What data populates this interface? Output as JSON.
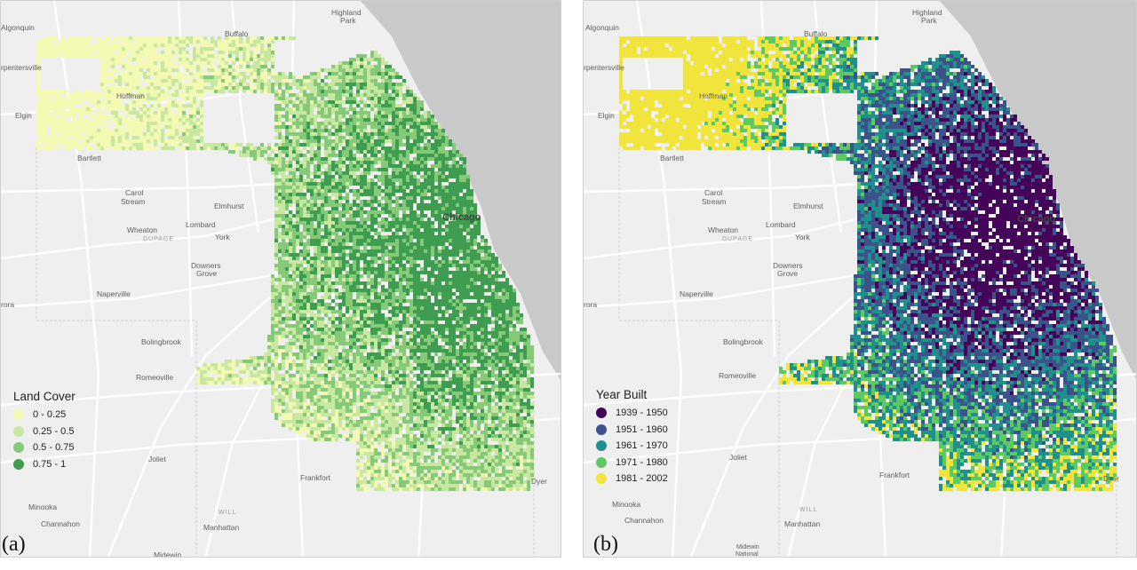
{
  "panels": [
    {
      "id": "a",
      "panel_label": "(a)",
      "legend": {
        "title": "Land Cover",
        "items": [
          {
            "label": "0 - 0.25",
            "color": "#f4f9b4"
          },
          {
            "label": "0.25 - 0.5",
            "color": "#c8e8a2"
          },
          {
            "label": "0.5 - 0.75",
            "color": "#86c978"
          },
          {
            "label": "0.75 - 1",
            "color": "#3e9d51"
          }
        ]
      },
      "places": [
        {
          "name": "Algonquin"
        },
        {
          "name": "Highland"
        },
        {
          "name": "Park"
        },
        {
          "name": "Buffalo"
        },
        {
          "name": "rpentersville"
        },
        {
          "name": "Hoffman"
        },
        {
          "name": "Elgin"
        },
        {
          "name": "Bartlett"
        },
        {
          "name": "Carol"
        },
        {
          "name": "Stream"
        },
        {
          "name": "Elmhurst"
        },
        {
          "name": "Chicago"
        },
        {
          "name": "Wheaton"
        },
        {
          "name": "Lombard"
        },
        {
          "name": "DUPAGE"
        },
        {
          "name": "York"
        },
        {
          "name": "Downers"
        },
        {
          "name": "Grove"
        },
        {
          "name": "Naperville"
        },
        {
          "name": "rora"
        },
        {
          "name": "Bolingbrook"
        },
        {
          "name": "Romeoville"
        },
        {
          "name": "Joliet"
        },
        {
          "name": "Frankfort"
        },
        {
          "name": "Dyer"
        },
        {
          "name": "Minooka"
        },
        {
          "name": "Channahon"
        },
        {
          "name": "WILL"
        },
        {
          "name": "Manhattan"
        },
        {
          "name": "Midewin"
        }
      ]
    },
    {
      "id": "b",
      "panel_label": "(b)",
      "legend": {
        "title": "Year Built",
        "items": [
          {
            "label": "1939 - 1950",
            "color": "#44045a"
          },
          {
            "label": "1951 - 1960",
            "color": "#3b528b"
          },
          {
            "label": "1961 - 1970",
            "color": "#21908c"
          },
          {
            "label": "1971 - 1980",
            "color": "#5ec962"
          },
          {
            "label": "1981 - 2002",
            "color": "#f1e53d"
          }
        ]
      },
      "places": [
        {
          "name": "Algonquin"
        },
        {
          "name": "Highland"
        },
        {
          "name": "Park"
        },
        {
          "name": "Buffalo"
        },
        {
          "name": "rpentersville"
        },
        {
          "name": "Hoffman"
        },
        {
          "name": "Elgin"
        },
        {
          "name": "Bartlett"
        },
        {
          "name": "Carol"
        },
        {
          "name": "Stream"
        },
        {
          "name": "Elmhurst"
        },
        {
          "name": "Chicago"
        },
        {
          "name": "Wheaton"
        },
        {
          "name": "Lombard"
        },
        {
          "name": "DUPAGE"
        },
        {
          "name": "York"
        },
        {
          "name": "Downers"
        },
        {
          "name": "Grove"
        },
        {
          "name": "Naperville"
        },
        {
          "name": "rora"
        },
        {
          "name": "Bolingbrook"
        },
        {
          "name": "Romeoville"
        },
        {
          "name": "Joliet"
        },
        {
          "name": "Frankfort"
        },
        {
          "name": "Dyer"
        },
        {
          "name": "Minooka"
        },
        {
          "name": "Channahon"
        },
        {
          "name": "WILL"
        },
        {
          "name": "Manhattan"
        },
        {
          "name": "Midewin"
        },
        {
          "name": "National"
        }
      ]
    }
  ],
  "colors": {
    "lake": "#c9c9c9",
    "land": "#efefef",
    "road": "#ffffff"
  }
}
